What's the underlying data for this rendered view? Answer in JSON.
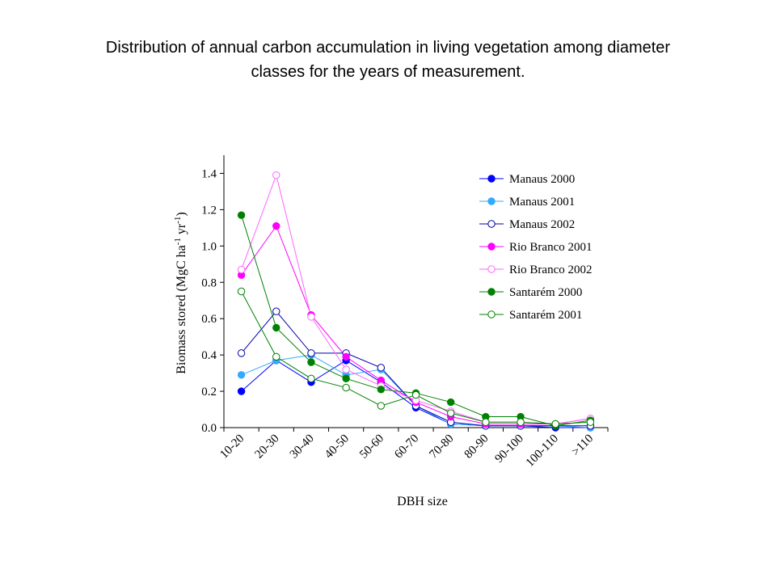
{
  "title_lines": [
    "Distribution of annual carbon accumulation in living vegetation among diameter",
    "classes for the years of measurement."
  ],
  "chart_data": {
    "type": "line",
    "xlabel": "DBH size",
    "ylabel": {
      "base": "Biomass stored (MgC ha",
      "sup1": "-1",
      "mid": " yr",
      "sup2": "-1",
      "end": ")"
    },
    "categories": [
      "10-20",
      "20-30",
      "30-40",
      "40-50",
      "50-60",
      "60-70",
      "70-80",
      "80-90",
      "90-100",
      "100-110",
      ">110"
    ],
    "yticks": [
      "0.0",
      "0.2",
      "0.4",
      "0.6",
      "0.8",
      "1.0",
      "1.2",
      "1.4"
    ],
    "ylim": [
      0,
      1.5
    ],
    "legend_position": "top-right",
    "series": [
      {
        "name": "Manaus 2000",
        "color": "#0000ff",
        "marker": "filled",
        "values": [
          0.2,
          0.37,
          0.25,
          0.37,
          0.25,
          0.11,
          0.02,
          0.01,
          0.01,
          0.0,
          0.0
        ]
      },
      {
        "name": "Manaus 2001",
        "color": "#33aaff",
        "marker": "filled",
        "values": [
          0.29,
          0.37,
          0.4,
          0.29,
          0.32,
          0.12,
          0.02,
          0.01,
          0.01,
          0.01,
          0.0
        ]
      },
      {
        "name": "Manaus 2002",
        "color": "#0000aa",
        "marker": "open",
        "values": [
          0.41,
          0.64,
          0.41,
          0.41,
          0.33,
          0.12,
          0.03,
          0.01,
          0.01,
          0.01,
          0.01
        ]
      },
      {
        "name": "Rio Branco 2001",
        "color": "#ff00ff",
        "marker": "filled",
        "values": [
          0.84,
          1.11,
          0.62,
          0.39,
          0.26,
          0.14,
          0.06,
          0.02,
          0.02,
          0.02,
          0.05
        ]
      },
      {
        "name": "Rio Branco 2002",
        "color": "#ff66ff",
        "marker": "open",
        "values": [
          0.87,
          1.39,
          0.61,
          0.32,
          0.23,
          0.15,
          0.09,
          0.03,
          0.03,
          0.02,
          0.05
        ]
      },
      {
        "name": "Santarém 2000",
        "color": "#008000",
        "marker": "filled",
        "values": [
          1.17,
          0.55,
          0.36,
          0.27,
          0.21,
          0.19,
          0.14,
          0.06,
          0.06,
          0.01,
          0.04
        ]
      },
      {
        "name": "Santarém 2001",
        "color": "#008000",
        "marker": "open",
        "values": [
          0.75,
          0.39,
          0.27,
          0.22,
          0.12,
          0.18,
          0.08,
          0.03,
          0.03,
          0.02,
          0.03
        ]
      }
    ]
  }
}
